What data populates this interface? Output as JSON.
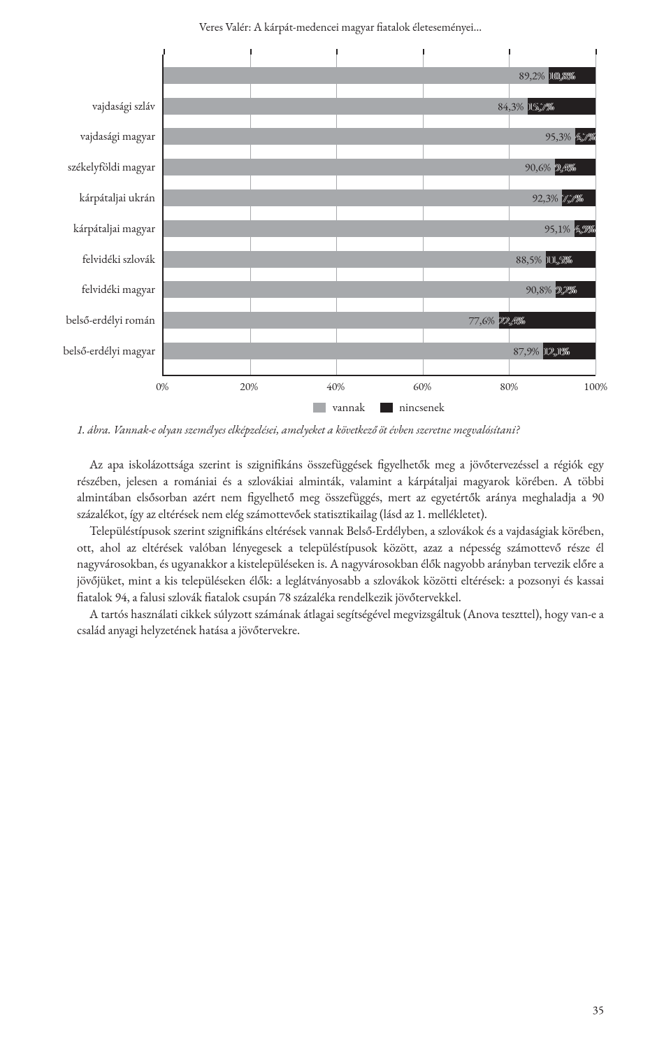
{
  "running_head": "Veres Valér: A kárpát-medencei magyar fiatalok életeseményei…",
  "chart": {
    "type": "stacked-bar-horizontal",
    "xlim": [
      0,
      100
    ],
    "xticks": [
      "0%",
      "20%",
      "40%",
      "60%",
      "80%",
      "100%"
    ],
    "xtick_positions": [
      0,
      20,
      40,
      60,
      80,
      100
    ],
    "grid_positions": [
      20,
      40,
      60,
      80,
      100
    ],
    "bar_color_vannak": "#a7a9ac",
    "bar_color_nincsenek": "#231f20",
    "background_color": "#ffffff",
    "axis_color": "#231f20",
    "label_fontsize": 17,
    "legend": {
      "vannak": "vannak",
      "nincsenek": "nincsenek"
    },
    "rows": [
      {
        "label": "",
        "vannak": 89.2,
        "nincsenek": 10.8,
        "vannak_label": "89,2%",
        "nincsenek_label": "10,8%"
      },
      {
        "label": "vajdasági szláv",
        "vannak": 84.3,
        "nincsenek": 15.7,
        "vannak_label": "84,3%",
        "nincsenek_label": "15,7%"
      },
      {
        "label": "vajdasági magyar",
        "vannak": 95.3,
        "nincsenek": 4.7,
        "vannak_label": "95,3%",
        "nincsenek_label": "4,7%"
      },
      {
        "label": "székelyföldi magyar",
        "vannak": 90.6,
        "nincsenek": 9.4,
        "vannak_label": "90,6%",
        "nincsenek_label": "9,4%"
      },
      {
        "label": "kárpátaljai ukrán",
        "vannak": 92.3,
        "nincsenek": 7.7,
        "vannak_label": "92,3%",
        "nincsenek_label": "7,7%"
      },
      {
        "label": "kárpátaljai magyar",
        "vannak": 95.1,
        "nincsenek": 4.9,
        "vannak_label": "95,1%",
        "nincsenek_label": "4,9%"
      },
      {
        "label": "felvidéki szlovák",
        "vannak": 88.5,
        "nincsenek": 11.5,
        "vannak_label": "88,5%",
        "nincsenek_label": "11,5%"
      },
      {
        "label": "felvidéki magyar",
        "vannak": 90.8,
        "nincsenek": 9.2,
        "vannak_label": "90,8%",
        "nincsenek_label": "9,2%"
      },
      {
        "label": "belső-erdélyi román",
        "vannak": 77.6,
        "nincsenek": 22.4,
        "vannak_label": "77,6%",
        "nincsenek_label": "22,4%"
      },
      {
        "label": "belső-erdélyi magyar",
        "vannak": 87.9,
        "nincsenek": 12.1,
        "vannak_label": "87,9%",
        "nincsenek_label": "12,1%"
      }
    ]
  },
  "caption": "1. ábra. Vannak-e olyan személyes elképzelései, amelyeket a következő öt évben szeretne megvalósítani?",
  "paragraphs": {
    "p1": "Az apa iskolázottsága szerint is szignifikáns összefüggések figyelhetők meg a jövőtervezéssel a régiók egy részében, jelesen a romániai és a szlovákiai alminták, valamint a kárpátaljai magyarok körében. A többi almintában elsősorban azért nem figyelhető meg összefüggés, mert az egyetértők aránya meghaladja a 90 százalékot, így az eltérések nem elég számottevőek statisztikailag (lásd az 1. mellékletet).",
    "p2": "Településtípusok szerint szignifikáns eltérések vannak Belső-Erdélyben, a szlovákok és a vajdaságiak körében, ott, ahol az eltérések valóban lényegesek a településtípusok között, azaz a népesség számottevő része él nagyvárosokban, és ugyanakkor a kistelepüléseken is. A nagyvárosokban élők nagyobb arányban tervezik előre a jövőjüket, mint a kis településeken élők: a leglátványosabb a szlovákok közötti eltérések: a pozsonyi és kassai fiatalok 94, a falusi szlovák fiatalok csupán 78 százaléka rendelkezik jövőtervekkel.",
    "p3": "A tartós használati cikkek súlyzott számának átlagai segítségével megvizsgáltuk (Anova teszttel), hogy van-e a család anyagi helyzetének hatása a jövőtervekre."
  },
  "page_number": "35"
}
